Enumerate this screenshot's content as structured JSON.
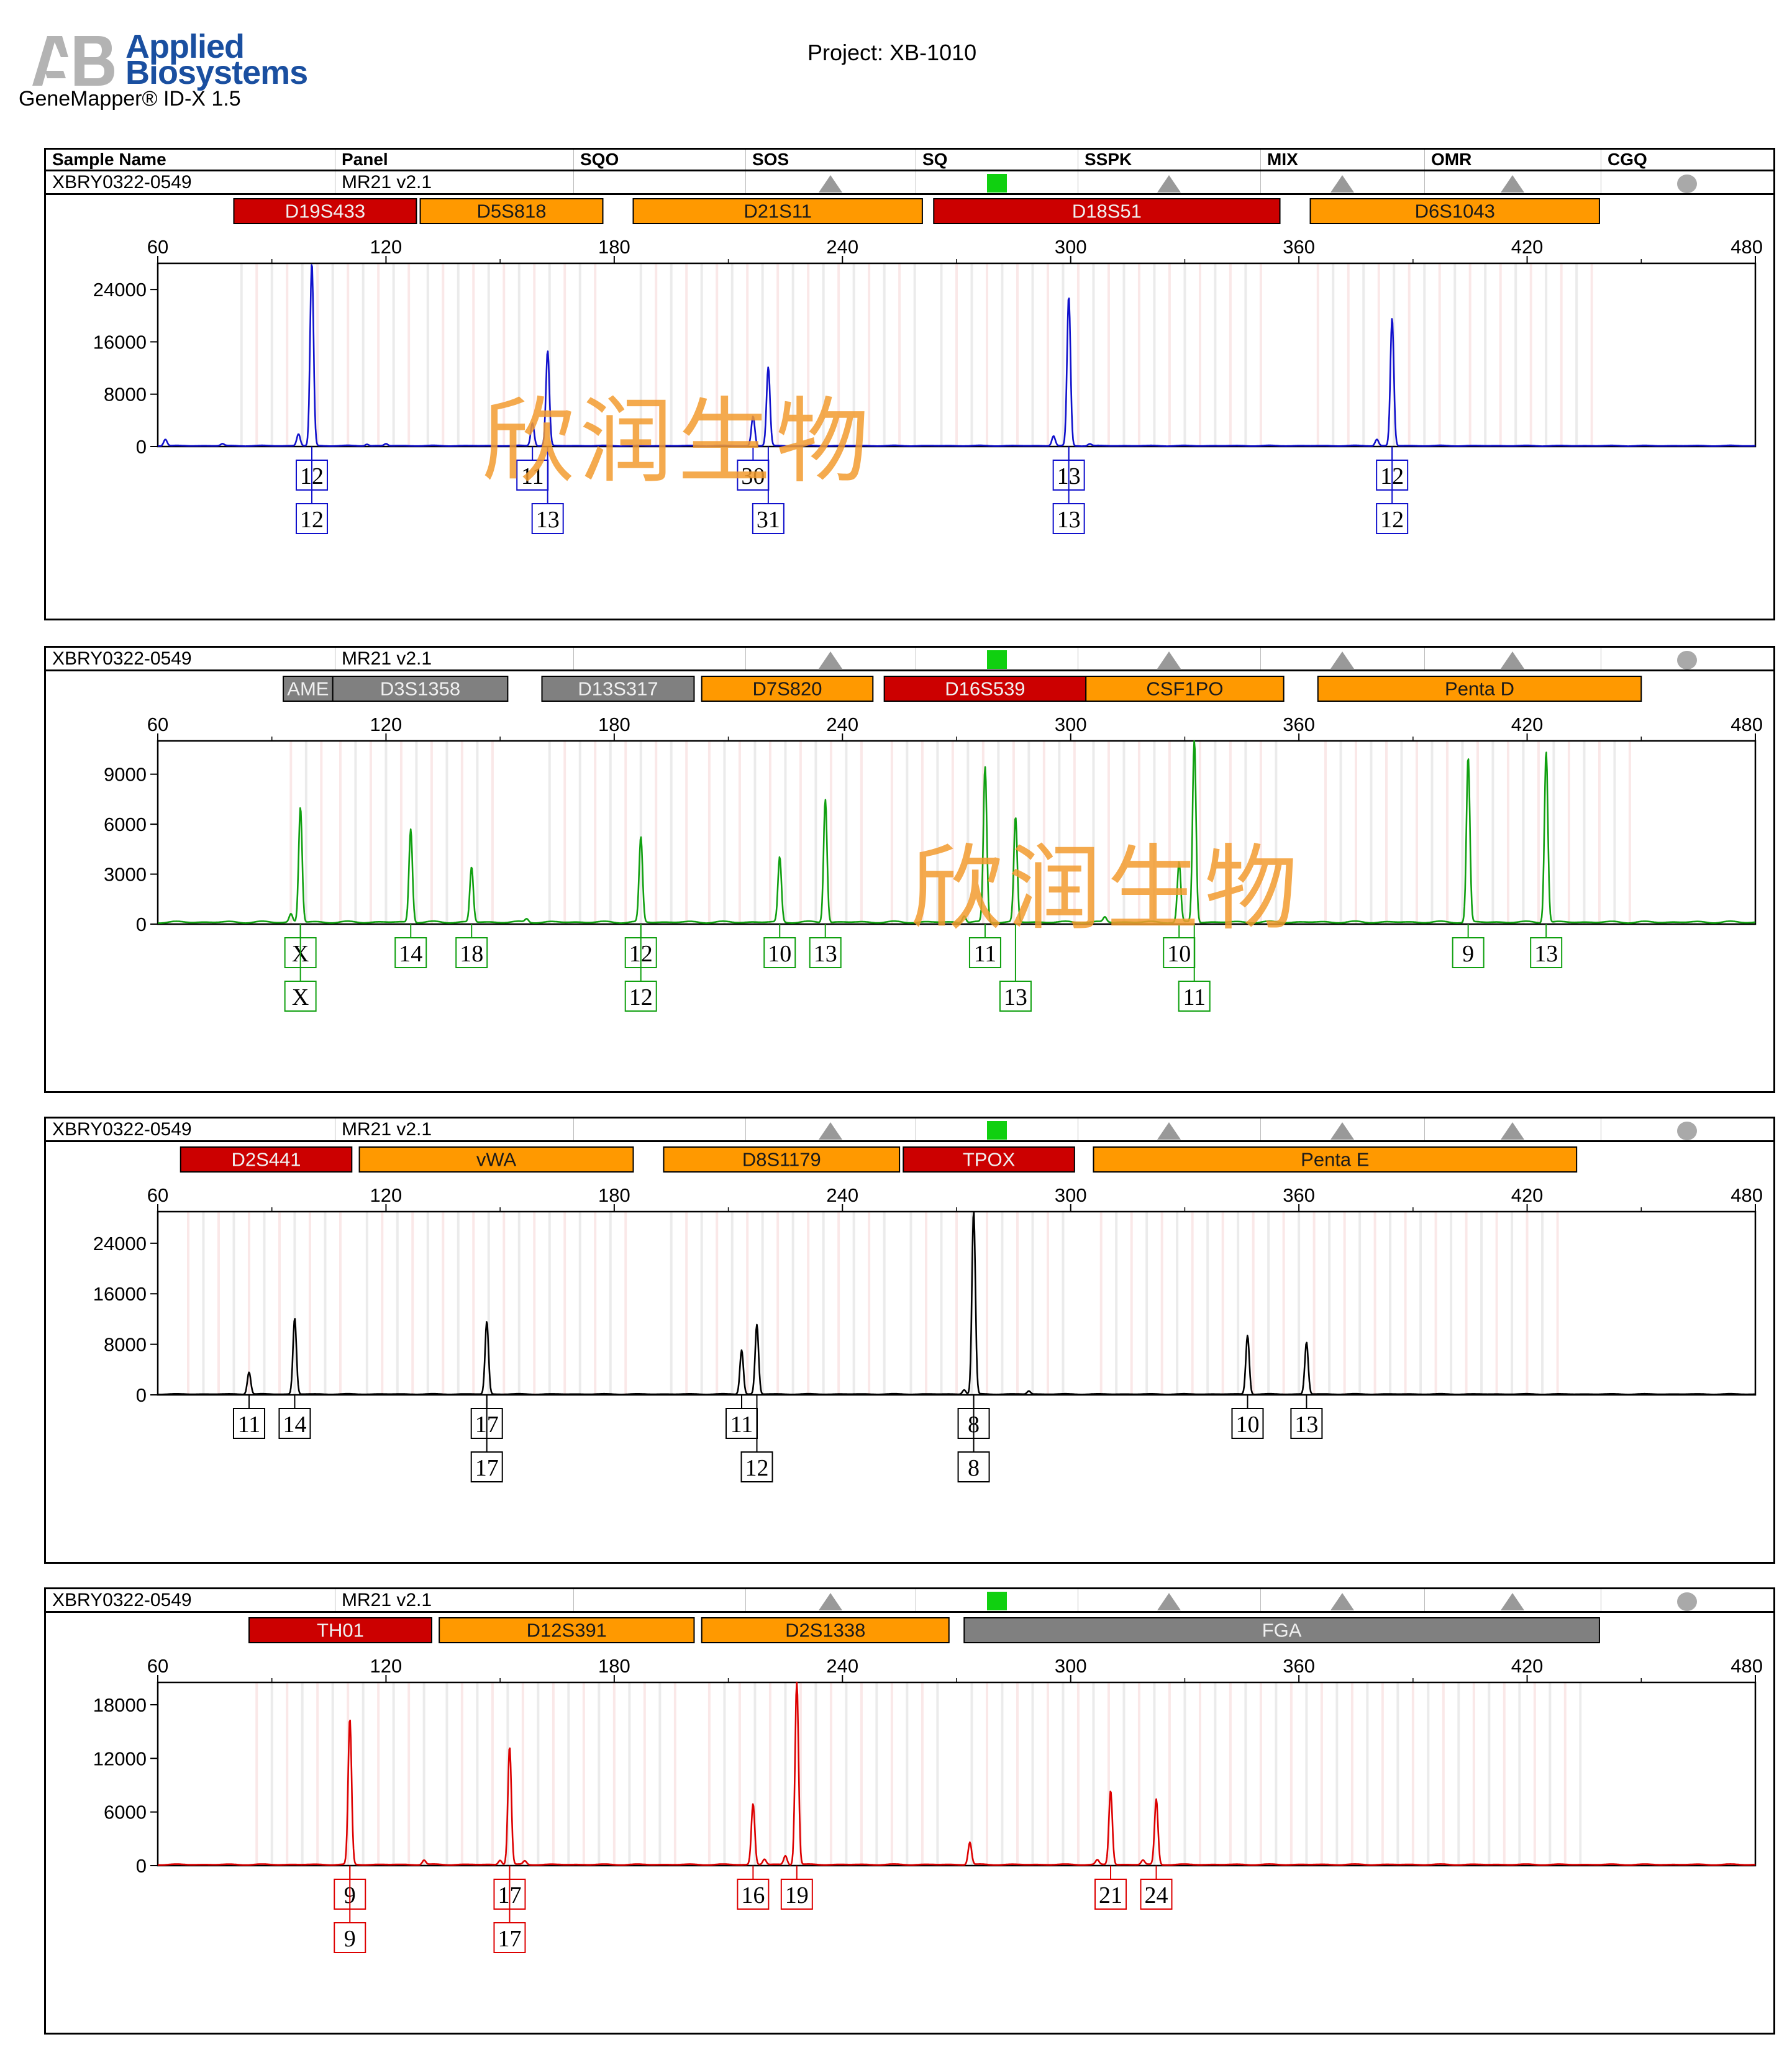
{
  "header": {
    "logo_line1": "Applied",
    "logo_line2": "Biosystems",
    "product": "GeneMapper® ID-X  1.5",
    "project": "Project: XB-1010"
  },
  "table_columns": [
    "Sample Name",
    "Panel",
    "SQO",
    "SOS",
    "SQ",
    "SSPK",
    "MIX",
    "OMR",
    "CGQ"
  ],
  "watermark": "欣润生物",
  "chart_data": [
    {
      "type": "line",
      "sample_name": "XBRY0322-0549",
      "panel": "MR21  v2.1",
      "status_icons": {
        "SOS": "triangle",
        "SQ": "green-square",
        "SSPK": "triangle",
        "MIX": "triangle",
        "OMR": "triangle",
        "CGQ": "circle"
      },
      "dye_color": "#1010cc",
      "xlim": [
        60,
        480
      ],
      "xticks": [
        60,
        120,
        180,
        240,
        300,
        360,
        420,
        480
      ],
      "ylim": [
        0,
        28000
      ],
      "yticks": [
        0,
        8000,
        16000,
        24000
      ],
      "loci": [
        {
          "name": "D19S433",
          "start": 80,
          "end": 128,
          "color": "#cc0000"
        },
        {
          "name": "D5S818",
          "start": 129,
          "end": 177,
          "color": "#ff9900"
        },
        {
          "name": "D21S11",
          "start": 185,
          "end": 261,
          "color": "#ff9900"
        },
        {
          "name": "D18S51",
          "start": 264,
          "end": 355,
          "color": "#cc0000"
        },
        {
          "name": "D6S1043",
          "start": 363,
          "end": 439,
          "color": "#ff9900"
        }
      ],
      "peaks": [
        {
          "x": 100.5,
          "y": 28000
        },
        {
          "x": 97.0,
          "y": 1800
        },
        {
          "x": 162.5,
          "y": 14500
        },
        {
          "x": 158.5,
          "y": 3500
        },
        {
          "x": 220.5,
          "y": 12000
        },
        {
          "x": 216.5,
          "y": 4500
        },
        {
          "x": 299.5,
          "y": 22800
        },
        {
          "x": 295.5,
          "y": 1500
        },
        {
          "x": 384.5,
          "y": 19500
        },
        {
          "x": 380.5,
          "y": 1000
        },
        {
          "x": 62,
          "y": 1000
        },
        {
          "x": 77,
          "y": 300
        },
        {
          "x": 115,
          "y": 250
        },
        {
          "x": 305,
          "y": 300
        },
        {
          "x": 120,
          "y": 300
        }
      ],
      "labels": [
        {
          "x": 100.5,
          "row": 1,
          "text": "12"
        },
        {
          "x": 100.5,
          "row": 2,
          "text": "12"
        },
        {
          "x": 158.5,
          "row": 1,
          "text": "11"
        },
        {
          "x": 162.5,
          "row": 2,
          "text": "13"
        },
        {
          "x": 216.5,
          "row": 1,
          "text": "30"
        },
        {
          "x": 220.5,
          "row": 2,
          "text": "31"
        },
        {
          "x": 299.5,
          "row": 1,
          "text": "13"
        },
        {
          "x": 299.5,
          "row": 2,
          "text": "13"
        },
        {
          "x": 384.5,
          "row": 1,
          "text": "12"
        },
        {
          "x": 384.5,
          "row": 2,
          "text": "12"
        }
      ]
    },
    {
      "type": "line",
      "sample_name": "XBRY0322-0549",
      "panel": "MR21  v2.1",
      "status_icons": {
        "SOS": "triangle",
        "SQ": "green-square",
        "SSPK": "triangle",
        "MIX": "triangle",
        "OMR": "triangle",
        "CGQ": "circle"
      },
      "dye_color": "#10a010",
      "xlim": [
        60,
        480
      ],
      "xticks": [
        60,
        120,
        180,
        240,
        300,
        360,
        420,
        480
      ],
      "ylim": [
        0,
        11000
      ],
      "yticks": [
        0,
        3000,
        6000,
        9000
      ],
      "loci": [
        {
          "name": "AME",
          "start": 93,
          "end": 106,
          "color": "#808080"
        },
        {
          "name": "D3S1358",
          "start": 106,
          "end": 152,
          "color": "#808080"
        },
        {
          "name": "D13S317",
          "start": 161,
          "end": 201,
          "color": "#808080"
        },
        {
          "name": "D7S820",
          "start": 203,
          "end": 248,
          "color": "#ff9900"
        },
        {
          "name": "D16S539",
          "start": 251,
          "end": 304,
          "color": "#cc0000"
        },
        {
          "name": "CSF1PO",
          "start": 304,
          "end": 356,
          "color": "#ff9900"
        },
        {
          "name": "Penta D",
          "start": 365,
          "end": 450,
          "color": "#ff9900"
        }
      ],
      "peaks": [
        {
          "x": 97.5,
          "y": 6900
        },
        {
          "x": 126.5,
          "y": 5600
        },
        {
          "x": 142.5,
          "y": 3300
        },
        {
          "x": 187,
          "y": 5100
        },
        {
          "x": 223.5,
          "y": 3900
        },
        {
          "x": 235.5,
          "y": 7400
        },
        {
          "x": 277.5,
          "y": 9300
        },
        {
          "x": 285.5,
          "y": 6300
        },
        {
          "x": 328.5,
          "y": 3600
        },
        {
          "x": 332.5,
          "y": 11000
        },
        {
          "x": 404.5,
          "y": 9900
        },
        {
          "x": 425,
          "y": 10300
        },
        {
          "x": 157,
          "y": 200
        },
        {
          "x": 272,
          "y": 400
        },
        {
          "x": 309,
          "y": 300
        },
        {
          "x": 95,
          "y": 500
        }
      ],
      "labels": [
        {
          "x": 97.5,
          "row": 1,
          "text": "X"
        },
        {
          "x": 97.5,
          "row": 2,
          "text": "X"
        },
        {
          "x": 126.5,
          "row": 1,
          "text": "14"
        },
        {
          "x": 142.5,
          "row": 1,
          "text": "18"
        },
        {
          "x": 187,
          "row": 1,
          "text": "12"
        },
        {
          "x": 187,
          "row": 2,
          "text": "12"
        },
        {
          "x": 223.5,
          "row": 1,
          "text": "10"
        },
        {
          "x": 235.5,
          "row": 1,
          "text": "13"
        },
        {
          "x": 277.5,
          "row": 1,
          "text": "11"
        },
        {
          "x": 285.5,
          "row": 2,
          "text": "13"
        },
        {
          "x": 328.5,
          "row": 1,
          "text": "10"
        },
        {
          "x": 332.5,
          "row": 2,
          "text": "11"
        },
        {
          "x": 404.5,
          "row": 1,
          "text": "9"
        },
        {
          "x": 425,
          "row": 1,
          "text": "13"
        }
      ]
    },
    {
      "type": "line",
      "sample_name": "XBRY0322-0549",
      "panel": "MR21  v2.1",
      "status_icons": {
        "SOS": "triangle",
        "SQ": "green-square",
        "SSPK": "triangle",
        "MIX": "triangle",
        "OMR": "triangle",
        "CGQ": "circle"
      },
      "dye_color": "#000000",
      "xlim": [
        60,
        480
      ],
      "xticks": [
        60,
        120,
        180,
        240,
        300,
        360,
        420,
        480
      ],
      "ylim": [
        0,
        29000
      ],
      "yticks": [
        0,
        8000,
        16000,
        24000
      ],
      "loci": [
        {
          "name": "D2S441",
          "start": 66,
          "end": 111,
          "color": "#cc0000"
        },
        {
          "name": "vWA",
          "start": 113,
          "end": 185,
          "color": "#ff9900"
        },
        {
          "name": "D8S1179",
          "start": 193,
          "end": 255,
          "color": "#ff9900"
        },
        {
          "name": "TPOX",
          "start": 256,
          "end": 301,
          "color": "#cc0000"
        },
        {
          "name": "Penta E",
          "start": 306,
          "end": 433,
          "color": "#ff9900"
        }
      ],
      "peaks": [
        {
          "x": 84,
          "y": 3500
        },
        {
          "x": 96,
          "y": 12000
        },
        {
          "x": 146.5,
          "y": 11500
        },
        {
          "x": 213.5,
          "y": 7000
        },
        {
          "x": 217.5,
          "y": 11000
        },
        {
          "x": 274.5,
          "y": 29000
        },
        {
          "x": 346.5,
          "y": 9300
        },
        {
          "x": 362,
          "y": 8200
        },
        {
          "x": 289,
          "y": 500
        },
        {
          "x": 272,
          "y": 700
        }
      ],
      "labels": [
        {
          "x": 84,
          "row": 1,
          "text": "11"
        },
        {
          "x": 96,
          "row": 1,
          "text": "14"
        },
        {
          "x": 146.5,
          "row": 1,
          "text": "17"
        },
        {
          "x": 146.5,
          "row": 2,
          "text": "17"
        },
        {
          "x": 213.5,
          "row": 1,
          "text": "11"
        },
        {
          "x": 217.5,
          "row": 2,
          "text": "12"
        },
        {
          "x": 274.5,
          "row": 1,
          "text": "8"
        },
        {
          "x": 274.5,
          "row": 2,
          "text": "8"
        },
        {
          "x": 346.5,
          "row": 1,
          "text": "10"
        },
        {
          "x": 362,
          "row": 1,
          "text": "13"
        }
      ]
    },
    {
      "type": "line",
      "sample_name": "XBRY0322-0549",
      "panel": "MR21  v2.1",
      "status_icons": {
        "SOS": "triangle",
        "SQ": "green-square",
        "SSPK": "triangle",
        "MIX": "triangle",
        "OMR": "triangle",
        "CGQ": "circle"
      },
      "dye_color": "#dd0000",
      "xlim": [
        60,
        480
      ],
      "xticks": [
        60,
        120,
        180,
        240,
        300,
        360,
        420,
        480
      ],
      "ylim": [
        0,
        20500
      ],
      "yticks": [
        0,
        6000,
        12000,
        18000
      ],
      "loci": [
        {
          "name": "TH01",
          "start": 84,
          "end": 132,
          "color": "#cc0000"
        },
        {
          "name": "D12S391",
          "start": 134,
          "end": 201,
          "color": "#ff9900"
        },
        {
          "name": "D2S1338",
          "start": 203,
          "end": 268,
          "color": "#ff9900"
        },
        {
          "name": "FGA",
          "start": 272,
          "end": 439,
          "color": "#808080"
        }
      ],
      "peaks": [
        {
          "x": 110.5,
          "y": 16300
        },
        {
          "x": 152.5,
          "y": 13200
        },
        {
          "x": 216.5,
          "y": 6800
        },
        {
          "x": 228,
          "y": 20500
        },
        {
          "x": 310.5,
          "y": 8300
        },
        {
          "x": 322.5,
          "y": 7300
        },
        {
          "x": 273.5,
          "y": 2500
        },
        {
          "x": 130,
          "y": 500
        },
        {
          "x": 156.5,
          "y": 400
        },
        {
          "x": 225,
          "y": 1000
        },
        {
          "x": 219.5,
          "y": 600
        },
        {
          "x": 307,
          "y": 500
        },
        {
          "x": 319,
          "y": 500
        },
        {
          "x": 150,
          "y": 500
        }
      ],
      "labels": [
        {
          "x": 110.5,
          "row": 1,
          "text": "9"
        },
        {
          "x": 110.5,
          "row": 2,
          "text": "9"
        },
        {
          "x": 152.5,
          "row": 1,
          "text": "17"
        },
        {
          "x": 152.5,
          "row": 2,
          "text": "17"
        },
        {
          "x": 216.5,
          "row": 1,
          "text": "16"
        },
        {
          "x": 228,
          "row": 1,
          "text": "19"
        },
        {
          "x": 310.5,
          "row": 1,
          "text": "21"
        },
        {
          "x": 322.5,
          "row": 1,
          "text": "24"
        }
      ]
    }
  ]
}
